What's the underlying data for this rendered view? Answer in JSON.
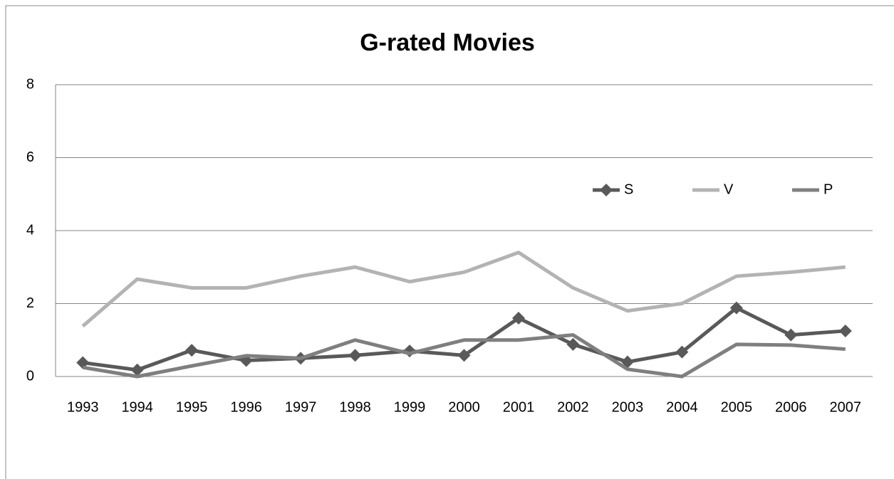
{
  "chart_data": {
    "type": "line",
    "title": "G-rated Movies",
    "categories": [
      "1993",
      "1994",
      "1995",
      "1996",
      "1997",
      "1998",
      "1999",
      "2000",
      "2001",
      "2002",
      "2003",
      "2004",
      "2005",
      "2006",
      "2007"
    ],
    "series": [
      {
        "name": "S",
        "color": "#595959",
        "marker": "diamond",
        "values": [
          0.38,
          0.18,
          0.72,
          0.44,
          0.5,
          0.58,
          0.7,
          0.58,
          1.6,
          0.88,
          0.4,
          0.67,
          1.88,
          1.14,
          1.25
        ]
      },
      {
        "name": "V",
        "color": "#b3b3b3",
        "values": [
          1.38,
          2.67,
          2.43,
          2.43,
          2.75,
          3.0,
          2.6,
          2.86,
          3.4,
          2.43,
          1.8,
          2.0,
          2.75,
          2.86,
          3.0
        ]
      },
      {
        "name": "P",
        "color": "#7f7f7f",
        "values": [
          0.25,
          0.0,
          0.29,
          0.57,
          0.5,
          1.0,
          0.63,
          1.0,
          1.0,
          1.14,
          0.2,
          0.0,
          0.88,
          0.86,
          0.75
        ]
      }
    ],
    "ylim": [
      0,
      8
    ],
    "yticks": [
      0,
      2,
      4,
      6,
      8
    ],
    "grid": true
  }
}
